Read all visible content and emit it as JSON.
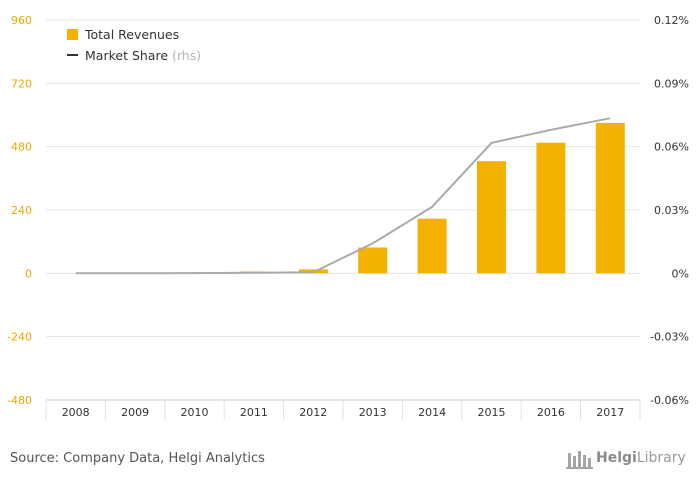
{
  "chart_data": {
    "type": "bar",
    "categories": [
      "2008",
      "2009",
      "2010",
      "2011",
      "2012",
      "2013",
      "2014",
      "2015",
      "2016",
      "2017"
    ],
    "series": [
      {
        "name": "Total Revenues",
        "type": "bar",
        "axis": "left",
        "values": [
          0,
          0,
          3,
          7,
          15,
          98,
          207,
          425,
          495,
          570
        ]
      },
      {
        "name": "Market Share",
        "type": "line",
        "axis": "right",
        "values": [
          4e-05,
          2e-05,
          0.00011,
          0.00025,
          0.00048,
          0.0142,
          0.0315,
          0.0618,
          0.068,
          0.0735
        ]
      }
    ],
    "legend": {
      "bar_label": "Total Revenues",
      "line_label": "Market Share",
      "line_suffix": "(rhs)",
      "position": "top-left"
    },
    "y_left": {
      "min": -480,
      "max": 960,
      "ticks": [
        "960",
        "720",
        "480",
        "240",
        "0",
        "-240",
        "-480"
      ]
    },
    "y_right": {
      "min": -0.06,
      "max": 0.12,
      "ticks": [
        "0.12%",
        "0.09%",
        "0.06%",
        "0.03%",
        "0%",
        "-0.03%",
        "-0.06%"
      ]
    },
    "grid": true,
    "colors": {
      "bar": "#f5b100",
      "line": "#aaaaaa",
      "left_ticks": "#f0a800",
      "right_ticks": "#333333",
      "grid": "#e6e6e6"
    }
  },
  "footer": {
    "source": "Source: Company Data, Helgi Analytics",
    "logo_prefix": "Helgi",
    "logo_suffix": "Library"
  }
}
